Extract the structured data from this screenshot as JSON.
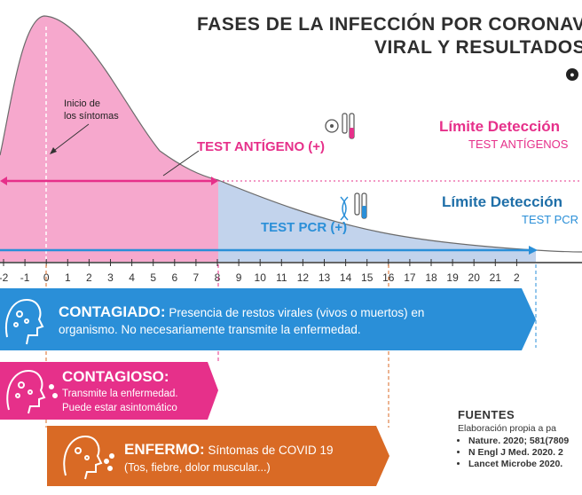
{
  "title": "FASES DE LA INFECCIÓN POR CORONAVI",
  "subtitle": "VIRAL Y RESULTADOS",
  "colors": {
    "pink": "#e6308a",
    "pink_fill": "#f6a8cd",
    "blue": "#2a8fd8",
    "blue_fill": "#c2d3ec",
    "orange": "#d96a25",
    "dark": "#2e2e2e"
  },
  "annotations": {
    "symptom_onset": [
      "Inicio de",
      "los síntomas"
    ],
    "antigen_test": "TEST ANTÍGENO (+)",
    "pcr_test": "TEST PCR (+)",
    "antigen_limit_title": "Límite Detección",
    "antigen_limit_sub": "TEST ANTÍGENOS",
    "pcr_limit_title": "Límite Detección",
    "pcr_limit_sub": "TEST PCR"
  },
  "axis": {
    "ticks": [
      "-2",
      "-1",
      "0",
      "1",
      "2",
      "3",
      "4",
      "5",
      "6",
      "7",
      "8",
      "9",
      "10",
      "11",
      "12",
      "13",
      "14",
      "15",
      "16",
      "17",
      "18",
      "19",
      "20",
      "21",
      "2"
    ]
  },
  "phases": {
    "contagiado": {
      "label": "CONTAGIADO:",
      "line1": " Presencia de restos virales (vivos o muertos) en",
      "line2": "organismo. No necesariamente transmite la enfermedad."
    },
    "contagioso": {
      "label": "CONTAGIOSO:",
      "line1": "Transmite la enfermedad.",
      "line2": "Puede estar asintomático"
    },
    "enfermo": {
      "label": "ENFERMO:",
      "line1": " Síntomas de COVID 19",
      "line2": "(Tos, fiebre, dolor muscular...)"
    }
  },
  "sources": {
    "heading": "FUENTES",
    "note": "Elaboración propia a pa",
    "items": [
      "Nature. 2020; 581(7809",
      "N Engl J Med. 2020. 2",
      "Lancet Microbe 2020."
    ]
  }
}
